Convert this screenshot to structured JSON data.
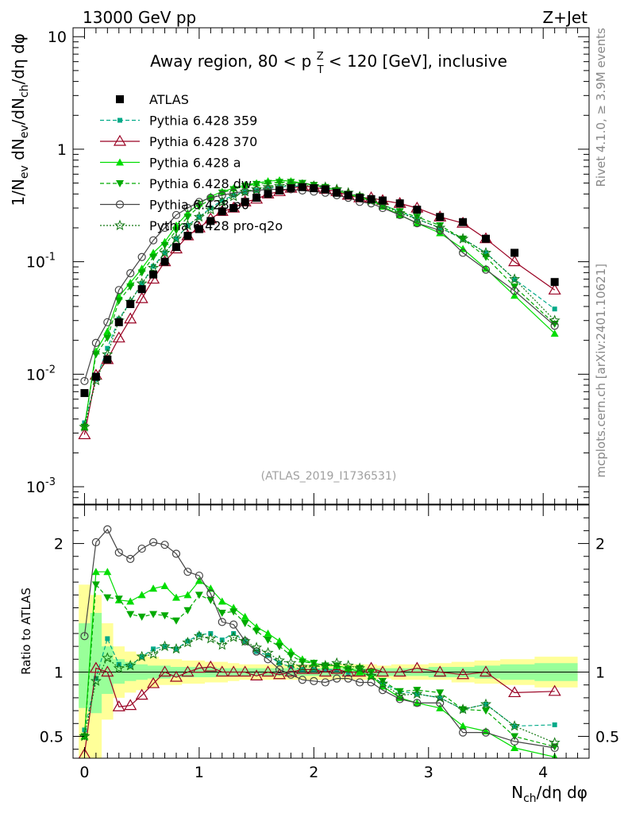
{
  "chart_data": [
    {
      "type": "line",
      "panel": "main",
      "header_left": "13000 GeV pp",
      "header_right": "Z+Jet",
      "title": "Away region, 80 < p_T^Z < 120 [GeV], inclusive",
      "ylabel": "1/N_ev dN_ev/dN_ch/dη dφ",
      "yscale": "log",
      "ylim": [
        0.0007,
        12
      ],
      "xlim": [
        -0.1,
        4.4
      ],
      "ytick_labels": [
        "10^-3",
        "10^-2",
        "10^-1",
        "1",
        "10"
      ],
      "watermark": "(ATLAS_2019_I1736531)",
      "side_label_top": "Rivet 4.1.0, ≥ 3.9M events",
      "side_label_bottom": "mcplots.cern.ch [arXiv:2401.10621]",
      "legend_position": "top-left",
      "x": [
        0.0,
        0.1,
        0.2,
        0.3,
        0.4,
        0.5,
        0.6,
        0.7,
        0.8,
        0.9,
        1.0,
        1.1,
        1.2,
        1.3,
        1.4,
        1.5,
        1.6,
        1.7,
        1.8,
        1.9,
        2.0,
        2.1,
        2.2,
        2.3,
        2.4,
        2.5,
        2.6,
        2.75,
        2.9,
        3.1,
        3.3,
        3.5,
        3.75,
        4.1
      ],
      "series": [
        {
          "name": "ATLAS",
          "key": "atlas",
          "color": "#000000",
          "marker": "square-filled",
          "line": "none",
          "values": [
            0.0068,
            0.0095,
            0.0135,
            0.029,
            0.042,
            0.057,
            0.077,
            0.1,
            0.135,
            0.17,
            0.195,
            0.23,
            0.28,
            0.3,
            0.34,
            0.37,
            0.4,
            0.43,
            0.45,
            0.46,
            0.45,
            0.44,
            0.41,
            0.39,
            0.37,
            0.36,
            0.35,
            0.33,
            0.29,
            0.25,
            0.225,
            0.16,
            0.12,
            0.066
          ]
        },
        {
          "name": "Pythia 6.428 359",
          "key": "p359",
          "color": "#00aa88",
          "marker": "square-small",
          "line": "dashed",
          "values": [
            0.0037,
            0.009,
            0.017,
            0.031,
            0.044,
            0.064,
            0.091,
            0.12,
            0.16,
            0.21,
            0.25,
            0.3,
            0.35,
            0.39,
            0.42,
            0.43,
            0.45,
            0.46,
            0.47,
            0.47,
            0.46,
            0.45,
            0.42,
            0.39,
            0.37,
            0.35,
            0.32,
            0.28,
            0.24,
            0.2,
            0.16,
            0.12,
            0.07,
            0.038
          ]
        },
        {
          "name": "Pythia 6.428 370",
          "key": "p370",
          "color": "#990022",
          "marker": "triangle-open",
          "line": "solid",
          "values": [
            0.0029,
            0.0098,
            0.0135,
            0.021,
            0.031,
            0.047,
            0.07,
            0.1,
            0.13,
            0.17,
            0.2,
            0.24,
            0.28,
            0.3,
            0.34,
            0.36,
            0.4,
            0.42,
            0.45,
            0.47,
            0.46,
            0.44,
            0.42,
            0.39,
            0.37,
            0.37,
            0.35,
            0.33,
            0.3,
            0.25,
            0.22,
            0.16,
            0.1,
            0.056
          ]
        },
        {
          "name": "Pythia 6.428 a",
          "key": "pa",
          "color": "#00dd00",
          "marker": "triangle-filled",
          "line": "solid",
          "values": [
            0.0034,
            0.016,
            0.024,
            0.049,
            0.065,
            0.087,
            0.12,
            0.15,
            0.21,
            0.27,
            0.33,
            0.38,
            0.42,
            0.45,
            0.48,
            0.5,
            0.52,
            0.53,
            0.52,
            0.5,
            0.48,
            0.46,
            0.43,
            0.4,
            0.37,
            0.35,
            0.31,
            0.26,
            0.22,
            0.18,
            0.13,
            0.087,
            0.05,
            0.023
          ]
        },
        {
          "name": "Pythia 6.428 dw",
          "key": "pdw",
          "color": "#00aa00",
          "marker": "triangle-down-filled",
          "line": "dashed",
          "values": [
            0.0034,
            0.015,
            0.021,
            0.045,
            0.06,
            0.08,
            0.11,
            0.14,
            0.19,
            0.25,
            0.31,
            0.36,
            0.41,
            0.44,
            0.47,
            0.49,
            0.5,
            0.51,
            0.51,
            0.5,
            0.48,
            0.46,
            0.43,
            0.4,
            0.38,
            0.36,
            0.32,
            0.28,
            0.25,
            0.21,
            0.16,
            0.11,
            0.06,
            0.028
          ]
        },
        {
          "name": "Pythia 6.428 p0",
          "key": "pp0",
          "color": "#444444",
          "marker": "circle-open",
          "line": "solid",
          "values": [
            0.0087,
            0.019,
            0.029,
            0.056,
            0.079,
            0.11,
            0.155,
            0.2,
            0.26,
            0.3,
            0.34,
            0.37,
            0.39,
            0.41,
            0.42,
            0.43,
            0.44,
            0.44,
            0.44,
            0.43,
            0.42,
            0.41,
            0.39,
            0.37,
            0.34,
            0.33,
            0.3,
            0.26,
            0.22,
            0.19,
            0.12,
            0.085,
            0.055,
            0.027
          ]
        },
        {
          "name": "Pythia 6.428 pro-q2o",
          "key": "pq2o",
          "color": "#117711",
          "marker": "star-open",
          "line": "dotted",
          "values": [
            0.0034,
            0.0088,
            0.015,
            0.03,
            0.044,
            0.064,
            0.088,
            0.12,
            0.16,
            0.21,
            0.25,
            0.29,
            0.34,
            0.38,
            0.42,
            0.44,
            0.46,
            0.47,
            0.48,
            0.48,
            0.47,
            0.46,
            0.44,
            0.41,
            0.38,
            0.35,
            0.32,
            0.27,
            0.24,
            0.2,
            0.16,
            0.12,
            0.07,
            0.03
          ]
        }
      ]
    },
    {
      "type": "line",
      "panel": "ratio",
      "ylabel": "Ratio to ATLAS",
      "xlabel": "N_ch/dη dφ",
      "ylim": [
        0.33,
        2.3
      ],
      "xlim": [
        -0.1,
        4.4
      ],
      "ytick_labels": [
        "0.5",
        "1",
        "2"
      ],
      "xtick_labels": [
        "0",
        "1",
        "2",
        "3",
        "4"
      ],
      "x": [
        0.0,
        0.1,
        0.2,
        0.3,
        0.4,
        0.5,
        0.6,
        0.7,
        0.8,
        0.9,
        1.0,
        1.1,
        1.2,
        1.3,
        1.4,
        1.5,
        1.6,
        1.7,
        1.8,
        1.9,
        2.0,
        2.1,
        2.2,
        2.3,
        2.4,
        2.5,
        2.6,
        2.75,
        2.9,
        3.1,
        3.3,
        3.5,
        3.75,
        4.1
      ],
      "band_yellow": {
        "lower": [
          0.33,
          0.33,
          0.63,
          0.8,
          0.84,
          0.86,
          0.88,
          0.9,
          0.9,
          0.91,
          0.91,
          0.92,
          0.92,
          0.93,
          0.94,
          0.94,
          0.94,
          0.94,
          0.94,
          0.94,
          0.94,
          0.94,
          0.94,
          0.94,
          0.94,
          0.94,
          0.95,
          0.94,
          0.94,
          0.94,
          0.92,
          0.91,
          0.9,
          0.88
        ],
        "upper": [
          1.68,
          1.6,
          1.38,
          1.2,
          1.16,
          1.14,
          1.12,
          1.1,
          1.1,
          1.09,
          1.09,
          1.08,
          1.08,
          1.07,
          1.06,
          1.06,
          1.06,
          1.06,
          1.06,
          1.06,
          1.06,
          1.06,
          1.06,
          1.06,
          1.06,
          1.06,
          1.05,
          1.06,
          1.06,
          1.07,
          1.08,
          1.09,
          1.1,
          1.12
        ]
      },
      "band_green": {
        "lower": [
          0.72,
          0.68,
          0.83,
          0.91,
          0.93,
          0.94,
          0.95,
          0.95,
          0.96,
          0.96,
          0.96,
          0.96,
          0.97,
          0.97,
          0.97,
          0.97,
          0.97,
          0.97,
          0.97,
          0.97,
          0.97,
          0.97,
          0.97,
          0.97,
          0.97,
          0.97,
          0.97,
          0.97,
          0.97,
          0.96,
          0.96,
          0.95,
          0.94,
          0.93
        ],
        "upper": [
          1.38,
          1.46,
          1.2,
          1.1,
          1.08,
          1.06,
          1.05,
          1.05,
          1.04,
          1.04,
          1.04,
          1.04,
          1.03,
          1.03,
          1.03,
          1.03,
          1.03,
          1.03,
          1.03,
          1.03,
          1.03,
          1.03,
          1.03,
          1.03,
          1.03,
          1.03,
          1.03,
          1.03,
          1.03,
          1.04,
          1.04,
          1.05,
          1.06,
          1.07
        ]
      },
      "series": [
        {
          "name": "Pythia 6.428 359",
          "key": "p359",
          "values": [
            0.55,
            0.95,
            1.26,
            1.06,
            1.05,
            1.12,
            1.18,
            1.2,
            1.18,
            1.24,
            1.29,
            1.3,
            1.25,
            1.3,
            1.24,
            1.16,
            1.13,
            1.07,
            1.04,
            1.02,
            1.02,
            1.02,
            1.02,
            1.0,
            1.0,
            0.97,
            0.91,
            0.85,
            0.83,
            0.8,
            0.71,
            0.75,
            0.58,
            0.59
          ]
        },
        {
          "name": "Pythia 6.428 370",
          "key": "p370",
          "values": [
            0.36,
            1.03,
            1.0,
            0.73,
            0.74,
            0.82,
            0.91,
            1.0,
            0.96,
            1.0,
            1.03,
            1.04,
            1.0,
            1.0,
            1.0,
            0.97,
            1.0,
            0.98,
            1.0,
            1.02,
            1.02,
            1.0,
            1.02,
            1.0,
            1.0,
            1.03,
            1.0,
            1.0,
            1.03,
            1.0,
            0.98,
            1.0,
            0.84,
            0.85
          ]
        },
        {
          "name": "Pythia 6.428 a",
          "key": "pa",
          "values": [
            0.5,
            1.78,
            1.78,
            1.56,
            1.55,
            1.6,
            1.65,
            1.67,
            1.58,
            1.6,
            1.71,
            1.65,
            1.55,
            1.5,
            1.43,
            1.35,
            1.3,
            1.24,
            1.16,
            1.1,
            1.07,
            1.05,
            1.05,
            1.03,
            1.0,
            0.97,
            0.89,
            0.8,
            0.76,
            0.72,
            0.58,
            0.54,
            0.41,
            0.34
          ]
        },
        {
          "name": "Pythia 6.428 dw",
          "key": "pdw",
          "values": [
            0.5,
            1.68,
            1.58,
            1.57,
            1.45,
            1.43,
            1.45,
            1.44,
            1.4,
            1.48,
            1.6,
            1.56,
            1.46,
            1.47,
            1.38,
            1.32,
            1.25,
            1.2,
            1.13,
            1.08,
            1.07,
            1.05,
            1.05,
            1.02,
            1.03,
            1.0,
            0.93,
            0.85,
            0.86,
            0.84,
            0.71,
            0.7,
            0.5,
            0.42
          ]
        },
        {
          "name": "Pythia 6.428 p0",
          "key": "pp0",
          "values": [
            1.28,
            2.01,
            2.11,
            1.93,
            1.88,
            1.96,
            2.01,
            1.99,
            1.92,
            1.78,
            1.75,
            1.61,
            1.39,
            1.37,
            1.24,
            1.16,
            1.1,
            1.02,
            0.98,
            0.94,
            0.93,
            0.92,
            0.95,
            0.95,
            0.92,
            0.92,
            0.86,
            0.79,
            0.76,
            0.76,
            0.53,
            0.53,
            0.46,
            0.41
          ]
        },
        {
          "name": "Pythia 6.428 pro-q2o",
          "key": "pq2o",
          "values": [
            0.5,
            0.93,
            1.11,
            1.03,
            1.05,
            1.12,
            1.14,
            1.2,
            1.18,
            1.23,
            1.28,
            1.26,
            1.21,
            1.27,
            1.24,
            1.19,
            1.15,
            1.09,
            1.07,
            1.04,
            1.04,
            1.05,
            1.07,
            1.05,
            1.03,
            0.97,
            0.91,
            0.82,
            0.83,
            0.8,
            0.71,
            0.75,
            0.58,
            0.45
          ]
        }
      ]
    }
  ]
}
